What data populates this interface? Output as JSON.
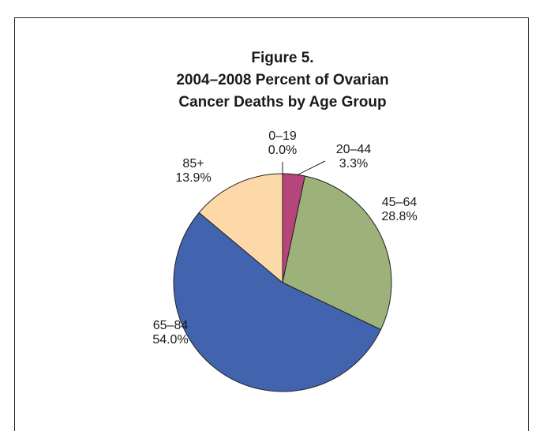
{
  "chart_data": {
    "type": "pie",
    "title": [
      "Figure 5.",
      "2004–2008 Percent of Ovarian",
      "Cancer Deaths by Age Group"
    ],
    "categories": [
      "0–19",
      "20–44",
      "45–64",
      "65–84",
      "85+"
    ],
    "values": [
      0.0,
      3.3,
      28.8,
      54.0,
      13.9
    ],
    "value_labels": [
      "0.0%",
      "3.3%",
      "28.8%",
      "54.0%",
      "13.9%"
    ],
    "colors": [
      "#c0c0c0",
      "#b5457a",
      "#9cb27a",
      "#4263ae",
      "#fdd9aa"
    ]
  }
}
